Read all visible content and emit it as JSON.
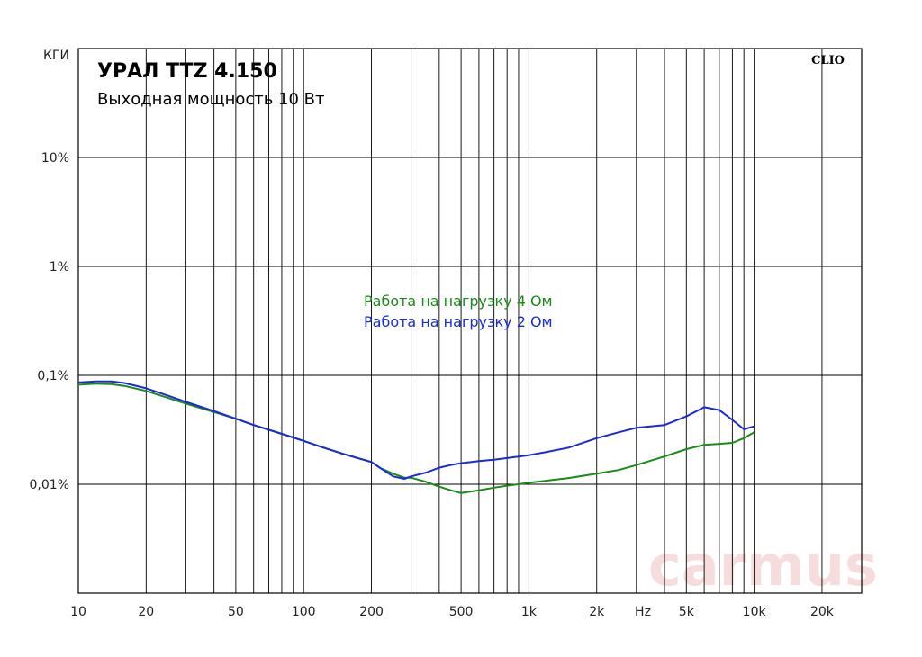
{
  "chart_data": {
    "type": "line",
    "title": "УРАЛ TTZ 4.150",
    "subtitle": "Выходная мощность 10 Вт",
    "ylabel": "КГИ",
    "brand": "CLIO",
    "watermark": "carmus",
    "x_scale": "log",
    "y_scale": "log",
    "xlim": [
      10,
      30000
    ],
    "ylim": [
      0.001,
      100
    ],
    "grid": true,
    "x_tick_labels": [
      {
        "v": 10,
        "label": "10"
      },
      {
        "v": 20,
        "label": "20"
      },
      {
        "v": 50,
        "label": "50"
      },
      {
        "v": 100,
        "label": "100"
      },
      {
        "v": 200,
        "label": "200"
      },
      {
        "v": 500,
        "label": "500"
      },
      {
        "v": 1000,
        "label": "1k"
      },
      {
        "v": 2000,
        "label": "2k"
      },
      {
        "v": 5000,
        "label": "5k"
      },
      {
        "v": 10000,
        "label": "10k"
      },
      {
        "v": 20000,
        "label": "20k"
      }
    ],
    "x_unit_label": "Hz",
    "y_tick_labels": [
      {
        "v": 10,
        "label": "10%"
      },
      {
        "v": 1,
        "label": "1%"
      },
      {
        "v": 0.1,
        "label": "0,1%"
      },
      {
        "v": 0.01,
        "label": "0,01%"
      }
    ],
    "series": [
      {
        "name": "Работа на нагрузку 4 Ом",
        "color": "#1a8a1a",
        "x": [
          10,
          12,
          14,
          16,
          20,
          25,
          30,
          40,
          50,
          60,
          80,
          100,
          120,
          150,
          200,
          220,
          250,
          280,
          300,
          350,
          400,
          450,
          500,
          600,
          700,
          800,
          1000,
          1200,
          1500,
          2000,
          2500,
          3000,
          4000,
          5000,
          6000,
          7000,
          8000,
          9000,
          10000
        ],
        "y": [
          0.082,
          0.084,
          0.083,
          0.08,
          0.072,
          0.062,
          0.055,
          0.046,
          0.04,
          0.035,
          0.029,
          0.025,
          0.022,
          0.019,
          0.016,
          0.014,
          0.0125,
          0.0115,
          0.0115,
          0.0105,
          0.0095,
          0.0088,
          0.0083,
          0.0088,
          0.0093,
          0.0097,
          0.0103,
          0.0108,
          0.0114,
          0.0125,
          0.0135,
          0.015,
          0.018,
          0.021,
          0.023,
          0.0235,
          0.024,
          0.0265,
          0.03
        ]
      },
      {
        "name": "Работа на нагрузку 2 Ом",
        "color": "#1a2ad8",
        "x": [
          10,
          12,
          14,
          16,
          20,
          25,
          30,
          40,
          50,
          60,
          80,
          100,
          120,
          150,
          200,
          220,
          250,
          280,
          300,
          350,
          400,
          450,
          500,
          600,
          700,
          800,
          1000,
          1200,
          1500,
          2000,
          2500,
          3000,
          4000,
          5000,
          6000,
          7000,
          8000,
          9000,
          10000
        ],
        "y": [
          0.086,
          0.088,
          0.088,
          0.085,
          0.076,
          0.065,
          0.057,
          0.047,
          0.04,
          0.035,
          0.029,
          0.025,
          0.022,
          0.019,
          0.016,
          0.014,
          0.0118,
          0.0112,
          0.0118,
          0.0128,
          0.0142,
          0.015,
          0.0156,
          0.0163,
          0.0168,
          0.0174,
          0.0185,
          0.0198,
          0.0217,
          0.0265,
          0.03,
          0.033,
          0.035,
          0.042,
          0.051,
          0.048,
          0.039,
          0.032,
          0.034
        ]
      }
    ]
  }
}
